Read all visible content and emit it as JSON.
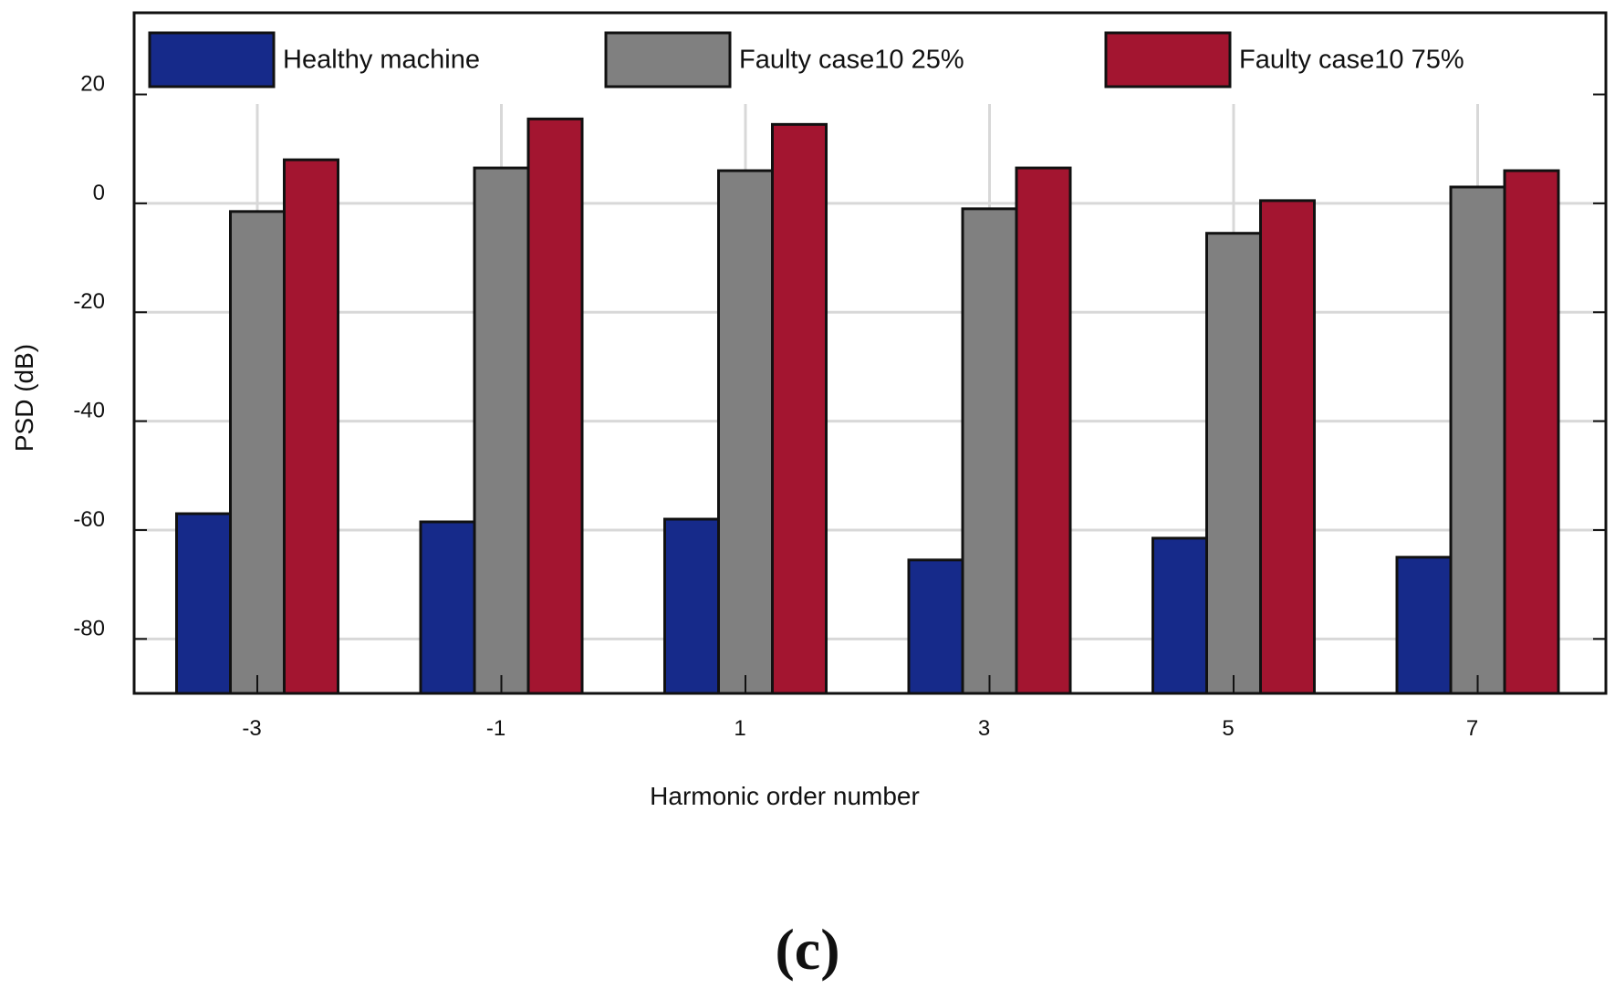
{
  "chart_data": {
    "type": "bar",
    "title": "",
    "xlabel": "Harmonic order number",
    "ylabel": "PSD (dB)",
    "ylim": [
      -90,
      35
    ],
    "yticks": [
      20,
      0,
      -20,
      -40,
      -60,
      -80
    ],
    "grid": true,
    "legend_position": "top",
    "categories": [
      "-3",
      "-1",
      "1",
      "3",
      "5",
      "7"
    ],
    "series": [
      {
        "name": "Healthy machine",
        "color": "#162a8a",
        "values": [
          -57,
          -58.5,
          -58,
          -65.5,
          -61.5,
          -65
        ]
      },
      {
        "name": "Faulty case10 25%",
        "color": "#808080",
        "values": [
          -1.5,
          6.5,
          6,
          -1,
          -5.5,
          3
        ]
      },
      {
        "name": "Faulty case10 75%",
        "color": "#a31530",
        "values": [
          8,
          15.5,
          14.5,
          6.5,
          0.5,
          6
        ]
      }
    ],
    "panel_label": "(c)"
  }
}
